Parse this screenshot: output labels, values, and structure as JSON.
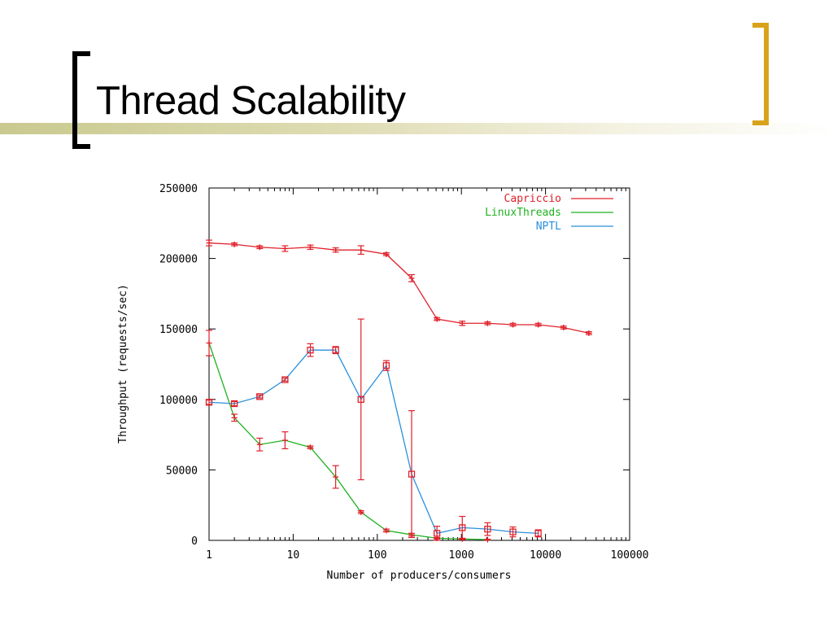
{
  "slide": {
    "title": "Thread Scalability"
  },
  "chart_data": {
    "type": "line",
    "title": "",
    "xlabel": "Number of producers/consumers",
    "ylabel": "Throughput (requests/sec)",
    "xscale": "log",
    "xlim": [
      1,
      100000
    ],
    "ylim": [
      0,
      250000
    ],
    "x_ticks": [
      "1",
      "10",
      "100",
      "1000",
      "10000",
      "100000"
    ],
    "y_ticks": [
      "0",
      "50000",
      "100000",
      "150000",
      "200000",
      "250000"
    ],
    "legend_position": "top-right",
    "grid": false,
    "series": [
      {
        "name": "Capriccio",
        "color": "#e0202a",
        "marker": "plus",
        "points": [
          {
            "x": 1,
            "y": 211000,
            "err": 2000
          },
          {
            "x": 2,
            "y": 210000,
            "err": 1000
          },
          {
            "x": 4,
            "y": 208000,
            "err": 1000
          },
          {
            "x": 8,
            "y": 207000,
            "err": 2000
          },
          {
            "x": 16,
            "y": 208000,
            "err": 1500
          },
          {
            "x": 32,
            "y": 206000,
            "err": 1500
          },
          {
            "x": 64,
            "y": 206000,
            "err": 3000
          },
          {
            "x": 128,
            "y": 203000,
            "err": 1000
          },
          {
            "x": 256,
            "y": 186000,
            "err": 2500
          },
          {
            "x": 512,
            "y": 157000,
            "err": 1000
          },
          {
            "x": 1024,
            "y": 154000,
            "err": 1500
          },
          {
            "x": 2048,
            "y": 154000,
            "err": 1000
          },
          {
            "x": 4096,
            "y": 153000,
            "err": 1000
          },
          {
            "x": 8192,
            "y": 153000,
            "err": 1000
          },
          {
            "x": 16384,
            "y": 151000,
            "err": 1000
          },
          {
            "x": 32768,
            "y": 147000,
            "err": 1000
          }
        ]
      },
      {
        "name": "LinuxThreads",
        "color": "#1fb21f",
        "marker": "plus",
        "points": [
          {
            "x": 1,
            "y": 140000,
            "err": 9000
          },
          {
            "x": 2,
            "y": 87000,
            "err": 2500
          },
          {
            "x": 4,
            "y": 68000,
            "err": 4500
          },
          {
            "x": 8,
            "y": 71000,
            "err": 6000
          },
          {
            "x": 16,
            "y": 66000,
            "err": 1000
          },
          {
            "x": 32,
            "y": 45000,
            "err": 8000
          },
          {
            "x": 64,
            "y": 20000,
            "err": 1000
          },
          {
            "x": 128,
            "y": 7000,
            "err": 1000
          },
          {
            "x": 256,
            "y": 4000,
            "err": 1000
          },
          {
            "x": 512,
            "y": 1500,
            "err": 500
          },
          {
            "x": 1024,
            "y": 1000,
            "err": 500
          },
          {
            "x": 2048,
            "y": 500,
            "err": 300
          }
        ]
      },
      {
        "name": "NPTL",
        "color": "#2a8fdc",
        "marker": "square",
        "points": [
          {
            "x": 1,
            "y": 98000,
            "err": 1500
          },
          {
            "x": 2,
            "y": 97000,
            "err": 1500
          },
          {
            "x": 4,
            "y": 102000,
            "err": 1000
          },
          {
            "x": 8,
            "y": 114000,
            "err": 1000
          },
          {
            "x": 16,
            "y": 135000,
            "err": 4500
          },
          {
            "x": 32,
            "y": 135000,
            "err": 2500
          },
          {
            "x": 64,
            "y": 100000,
            "err": 57000
          },
          {
            "x": 128,
            "y": 124000,
            "err": 3500
          },
          {
            "x": 256,
            "y": 47000,
            "err": 45000
          },
          {
            "x": 512,
            "y": 5000,
            "err": 5000
          },
          {
            "x": 1024,
            "y": 9000,
            "err": 8000
          },
          {
            "x": 2048,
            "y": 8000,
            "err": 4500
          },
          {
            "x": 4096,
            "y": 6000,
            "err": 3500
          },
          {
            "x": 8192,
            "y": 5000,
            "err": 2500
          }
        ]
      }
    ]
  }
}
